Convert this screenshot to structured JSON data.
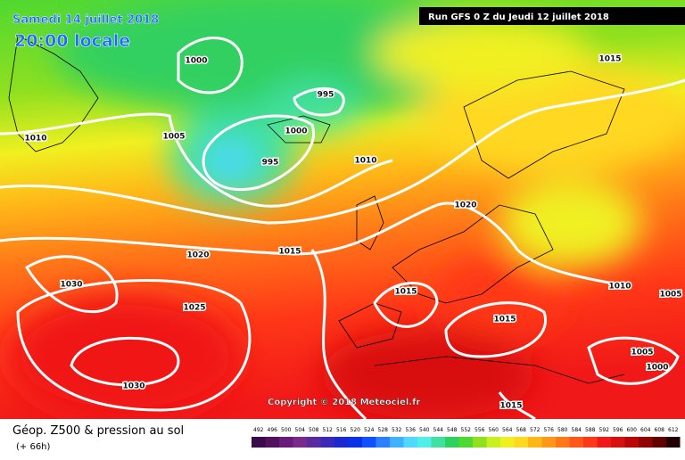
{
  "header": {
    "date": "Samedi 14 juillet 2018",
    "time": "20:00 locale",
    "run": "Run GFS 0 Z du Jeudi 12 juillet 2018"
  },
  "copyright": "Copyright © 2018 Meteociel.fr",
  "legend": {
    "title": "Géop. Z500 & pression au sol",
    "lead": "(+ 66h)"
  },
  "isobar_labels": [
    "1000",
    "995",
    "1000",
    "1005",
    "995",
    "1010",
    "1010",
    "1015",
    "1020",
    "1020",
    "1015",
    "1030",
    "1025",
    "1030",
    "1015",
    "1015",
    "1010",
    "1005",
    "1005",
    "1000",
    "1015"
  ],
  "scale": {
    "labels": [
      492,
      496,
      500,
      504,
      508,
      512,
      516,
      520,
      524,
      528,
      532,
      536,
      540,
      544,
      548,
      552,
      556,
      560,
      564,
      568,
      572,
      576,
      580,
      584,
      588,
      592,
      596,
      600,
      604,
      608,
      612
    ],
    "colors": [
      "#3a0a4a",
      "#52105e",
      "#6a1a78",
      "#7a2a8c",
      "#5a2aa0",
      "#3a2ab8",
      "#1a2ad0",
      "#0a30e8",
      "#1050ff",
      "#2a80ff",
      "#40b0ff",
      "#50d8ff",
      "#50f0e8",
      "#40e0a0",
      "#30d060",
      "#50d830",
      "#90e020",
      "#c8f020",
      "#f0f020",
      "#ffd820",
      "#ffb818",
      "#ff9818",
      "#ff7818",
      "#ff5818",
      "#ff3818",
      "#f01818",
      "#d81010",
      "#b80808",
      "#900404",
      "#600202",
      "#200000"
    ]
  }
}
